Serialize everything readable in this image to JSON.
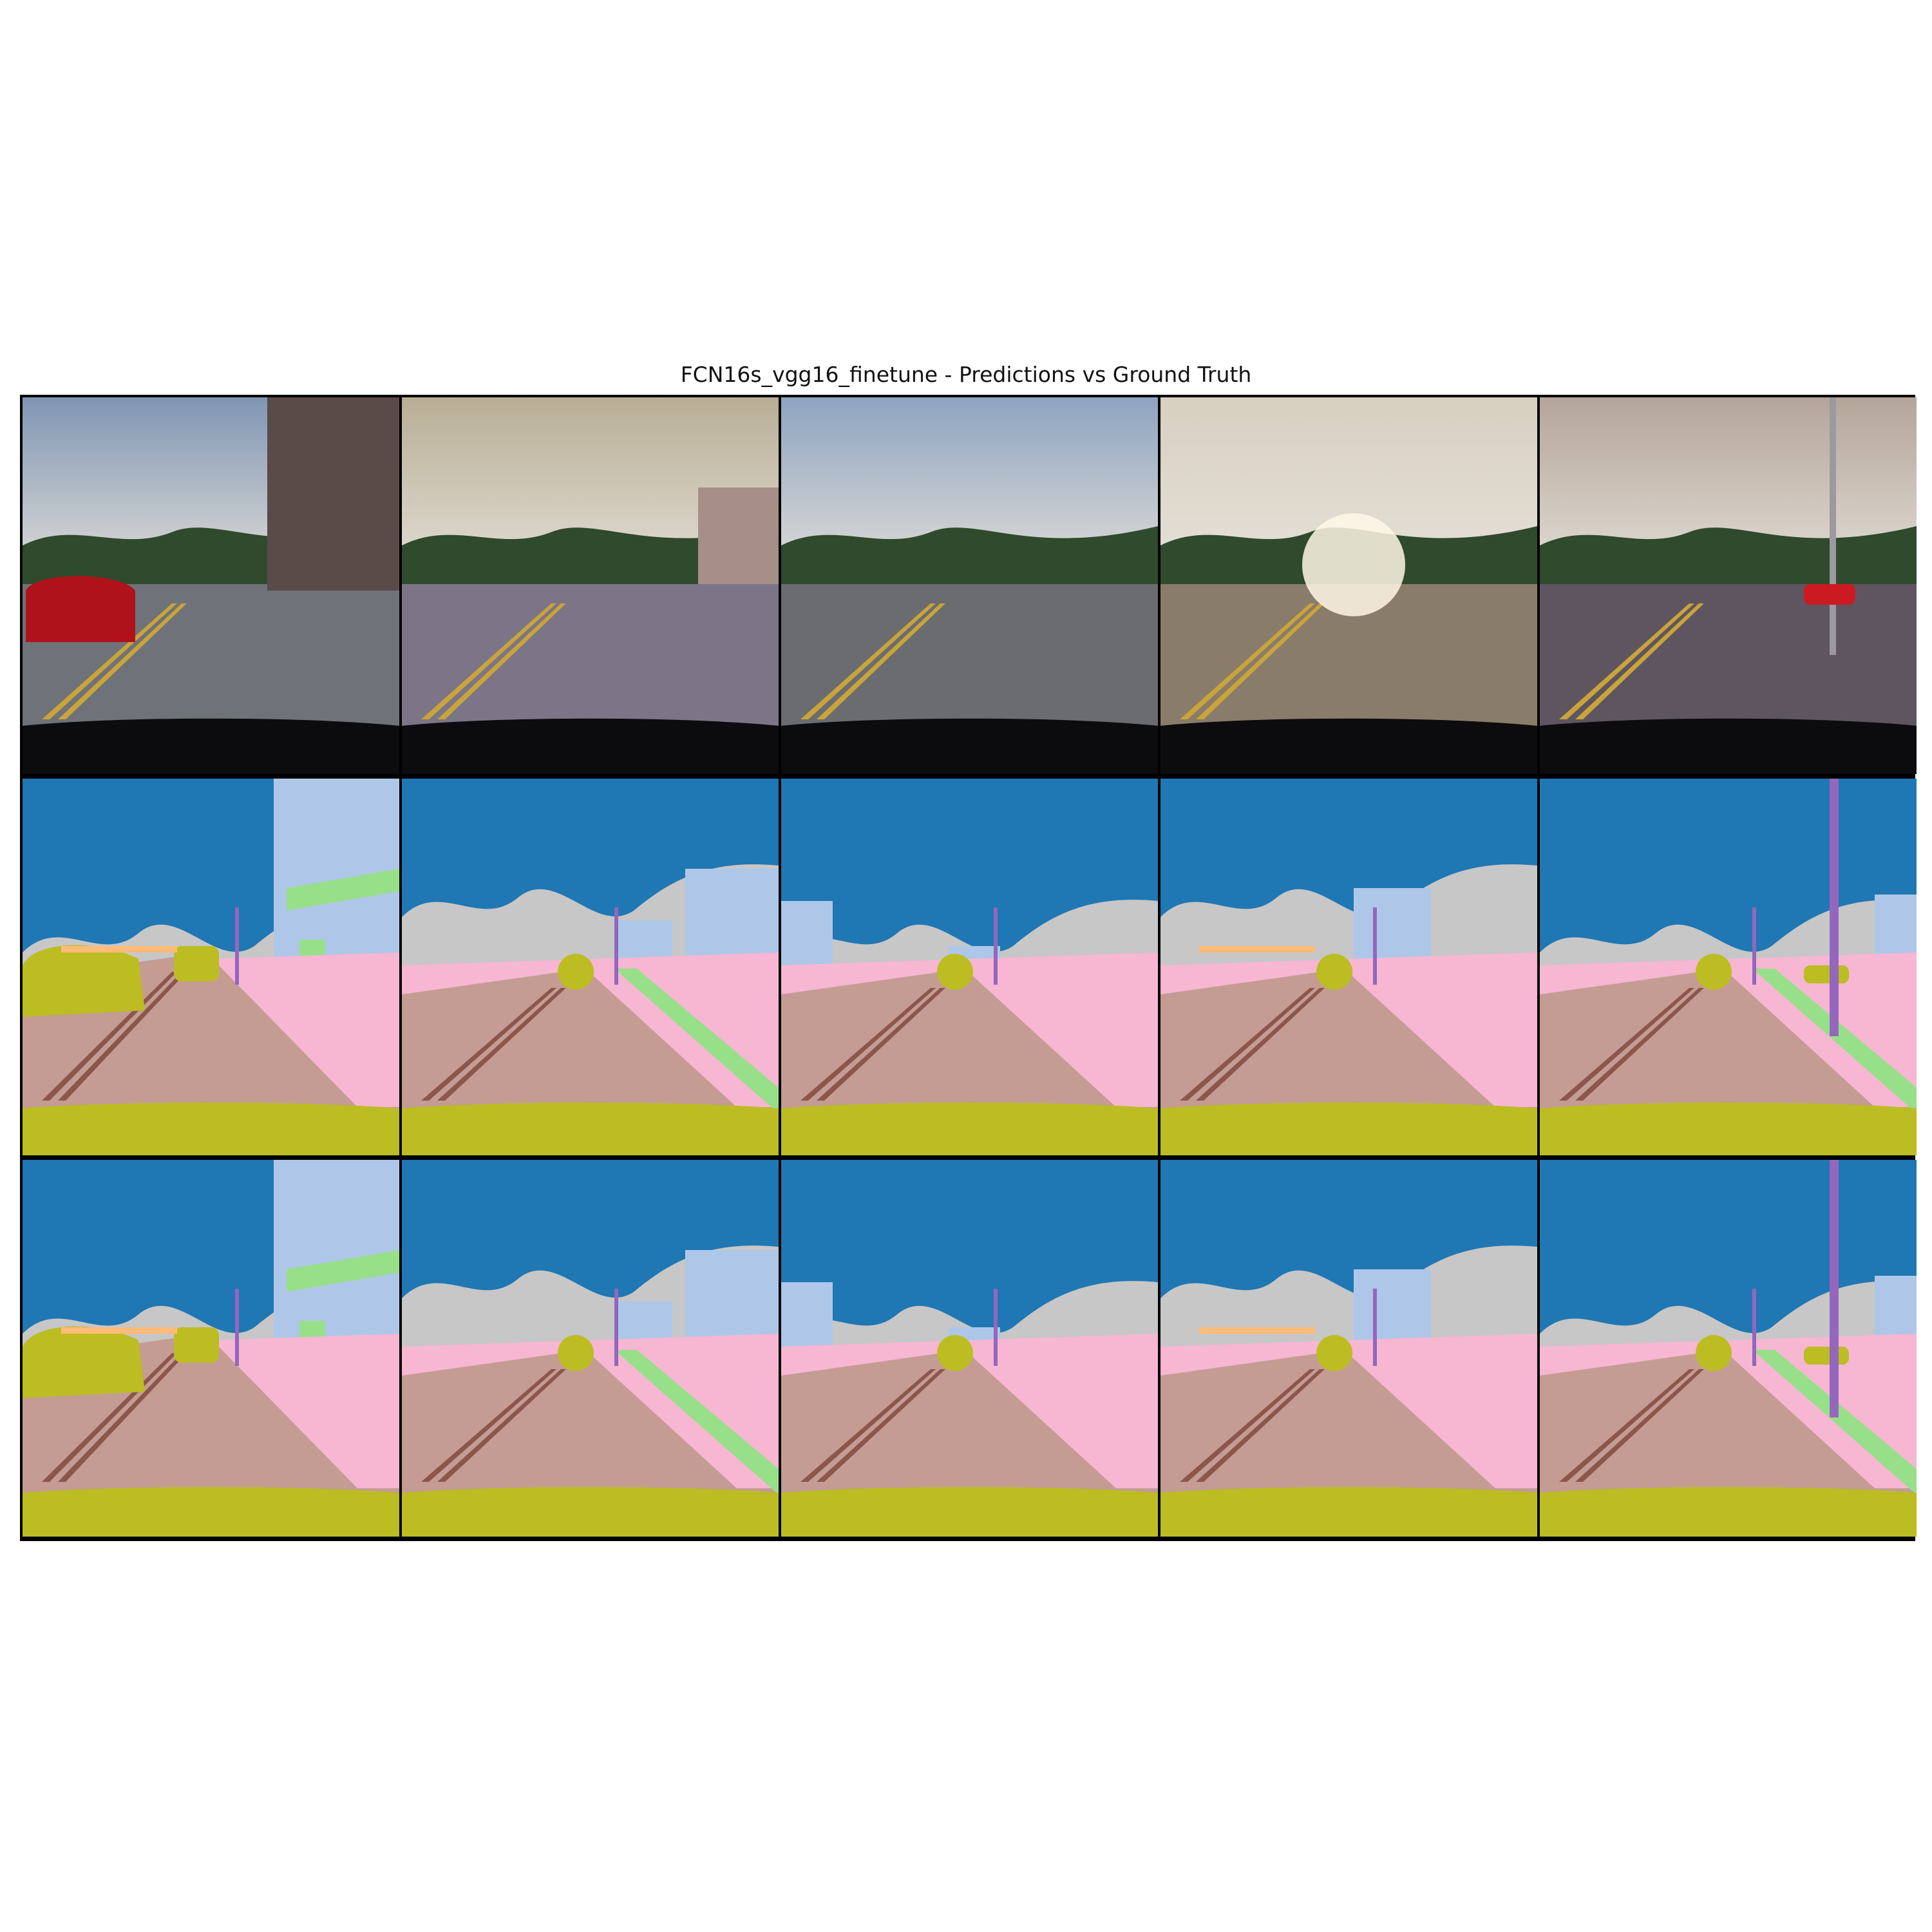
{
  "figure": {
    "title": "FCN16s_vgg16_finetune - Predictions vs Ground Truth"
  },
  "grid": {
    "rows": [
      "input",
      "prediction",
      "ground-truth"
    ],
    "columns": 5
  },
  "palette": {
    "sky": "#1f77b4",
    "vegetation": "#c7c7c7",
    "building": "#aec7e8",
    "road": "#c49c94",
    "roadline": "#8c564b",
    "sidewalk": "#f7b6d2",
    "vehicle": "#bcbd22",
    "pole": "#9467bd",
    "fence": "#ffbb78",
    "wall": "#98df8a",
    "water": "#17becf"
  },
  "scenes": [
    {
      "variant": "city-left-car",
      "photo_sky": "#7f96b4",
      "photo_ground": "#6f7278"
    },
    {
      "variant": "wet-road-houses",
      "photo_sky": "#b8ae95",
      "photo_ground": "#7c7587"
    },
    {
      "variant": "dry-road-trees",
      "photo_sky": "#8ea4c0",
      "photo_ground": "#6a6c70"
    },
    {
      "variant": "sun-glare",
      "photo_sky": "#d8cfc0",
      "photo_ground": "#8a7c6a"
    },
    {
      "variant": "wet-road-pole",
      "photo_sky": "#b4a59a",
      "photo_ground": "#5e5560"
    }
  ]
}
